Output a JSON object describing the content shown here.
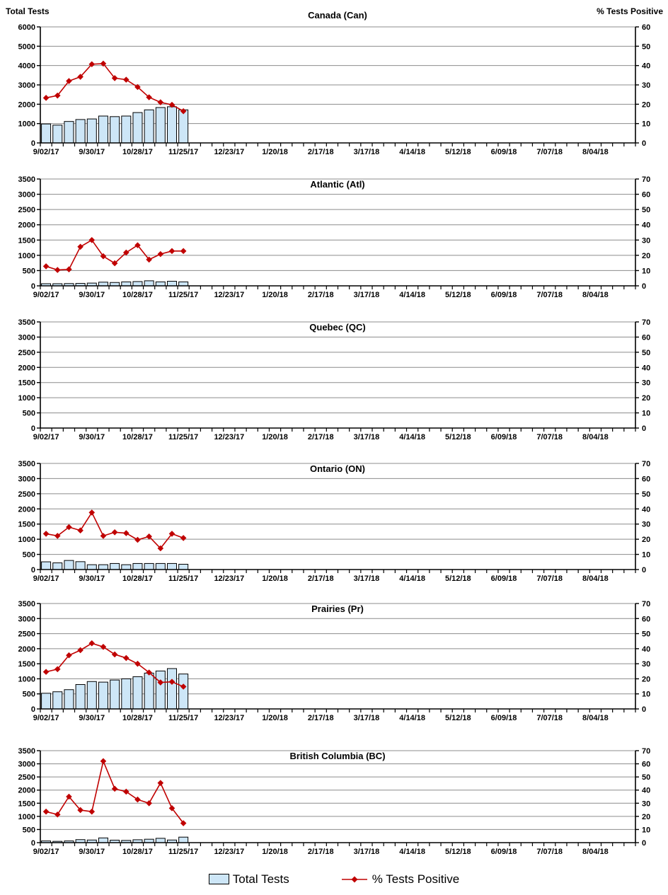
{
  "page": {
    "background": "#FFFFFF"
  },
  "colors": {
    "bar_fill": "#CDE6F7",
    "bar_border": "#000000",
    "line": "#C00000",
    "grid": "#8C8C8C",
    "axis": "#000000",
    "text": "#000000"
  },
  "legend": {
    "position": "bottom-center",
    "items": [
      {
        "label": "Total Tests",
        "type": "bar"
      },
      {
        "label": "% Tests Positive",
        "type": "line"
      }
    ]
  },
  "x_axis": {
    "weeks_total": 52,
    "label_every": 4,
    "tick_labels": [
      "9/02/17",
      "9/30/17",
      "10/28/17",
      "11/25/17",
      "12/23/17",
      "1/20/18",
      "2/17/18",
      "3/17/18",
      "4/14/18",
      "5/12/18",
      "6/09/18",
      "7/07/18",
      "8/04/18"
    ]
  },
  "chart_data": [
    {
      "id": "canada",
      "title": "Canada (Can)",
      "type": "combo",
      "grid": true,
      "corner_labels": {
        "left": "Total Tests",
        "right": "% Tests Positive"
      },
      "left_axis": {
        "min": 0,
        "max": 6000,
        "step": 1000
      },
      "right_axis": {
        "min": 0,
        "max": 60,
        "step": 10
      },
      "categories": [
        "9/02/17",
        "9/09/17",
        "9/16/17",
        "9/23/17",
        "9/30/17",
        "10/07/17",
        "10/14/17",
        "10/21/17",
        "10/28/17",
        "11/04/17",
        "11/11/17",
        "11/18/17",
        "11/25/17"
      ],
      "series": [
        {
          "name": "Total Tests",
          "type": "bar",
          "axis": "left",
          "values": [
            980,
            920,
            1110,
            1210,
            1240,
            1390,
            1360,
            1390,
            1570,
            1710,
            1830,
            1870,
            1710
          ]
        },
        {
          "name": "% Tests Positive",
          "type": "line",
          "axis": "right",
          "values": [
            23.3,
            24.5,
            32.0,
            34.2,
            40.7,
            41.0,
            33.5,
            32.7,
            28.9,
            23.6,
            21.0,
            19.7,
            16.4
          ]
        }
      ]
    },
    {
      "id": "atlantic",
      "title": "Atlantic (Atl)",
      "type": "combo",
      "grid": true,
      "left_axis": {
        "min": 0,
        "max": 3500,
        "step": 500
      },
      "right_axis": {
        "min": 0,
        "max": 70,
        "step": 10
      },
      "categories": [
        "9/02/17",
        "9/09/17",
        "9/16/17",
        "9/23/17",
        "9/30/17",
        "10/07/17",
        "10/14/17",
        "10/21/17",
        "10/28/17",
        "11/04/17",
        "11/11/17",
        "11/18/17",
        "11/25/17"
      ],
      "series": [
        {
          "name": "Total Tests",
          "type": "bar",
          "axis": "left",
          "values": [
            70,
            70,
            75,
            80,
            90,
            120,
            110,
            130,
            140,
            165,
            130,
            150,
            130
          ]
        },
        {
          "name": "% Tests Positive",
          "type": "line",
          "axis": "right",
          "values": [
            12.8,
            10.4,
            10.8,
            25.6,
            30.0,
            19.4,
            14.8,
            21.8,
            26.6,
            17.2,
            20.8,
            22.8,
            22.8
          ]
        }
      ]
    },
    {
      "id": "quebec",
      "title": "Quebec (QC)",
      "type": "combo",
      "grid": true,
      "left_axis": {
        "min": 0,
        "max": 3500,
        "step": 500
      },
      "right_axis": {
        "min": 0,
        "max": 70,
        "step": 10
      },
      "categories": [],
      "series": [
        {
          "name": "Total Tests",
          "type": "bar",
          "axis": "left",
          "values": []
        },
        {
          "name": "% Tests Positive",
          "type": "line",
          "axis": "right",
          "values": []
        }
      ]
    },
    {
      "id": "ontario",
      "title": "Ontario (ON)",
      "type": "combo",
      "grid": true,
      "left_axis": {
        "min": 0,
        "max": 3500,
        "step": 500
      },
      "right_axis": {
        "min": 0,
        "max": 70,
        "step": 10
      },
      "categories": [
        "9/02/17",
        "9/09/17",
        "9/16/17",
        "9/23/17",
        "9/30/17",
        "10/07/17",
        "10/14/17",
        "10/21/17",
        "10/28/17",
        "11/04/17",
        "11/11/17",
        "11/18/17",
        "11/25/17"
      ],
      "series": [
        {
          "name": "Total Tests",
          "type": "bar",
          "axis": "left",
          "values": [
            255,
            220,
            300,
            260,
            160,
            160,
            200,
            160,
            200,
            200,
            200,
            200,
            175
          ]
        },
        {
          "name": "% Tests Positive",
          "type": "line",
          "axis": "right",
          "values": [
            23.6,
            22.2,
            28.0,
            25.8,
            37.6,
            22.2,
            24.6,
            24.0,
            19.6,
            21.8,
            14.0,
            23.6,
            20.8
          ]
        }
      ]
    },
    {
      "id": "prairies",
      "title": "Prairies (Pr)",
      "type": "combo",
      "grid": true,
      "left_axis": {
        "min": 0,
        "max": 3500,
        "step": 500
      },
      "right_axis": {
        "min": 0,
        "max": 70,
        "step": 10
      },
      "categories": [
        "9/02/17",
        "9/09/17",
        "9/16/17",
        "9/23/17",
        "9/30/17",
        "10/07/17",
        "10/14/17",
        "10/21/17",
        "10/28/17",
        "11/04/17",
        "11/11/17",
        "11/18/17",
        "11/25/17"
      ],
      "series": [
        {
          "name": "Total Tests",
          "type": "bar",
          "axis": "left",
          "values": [
            520,
            570,
            640,
            810,
            910,
            890,
            960,
            1000,
            1070,
            1190,
            1260,
            1340,
            1160
          ]
        },
        {
          "name": "% Tests Positive",
          "type": "line",
          "axis": "right",
          "values": [
            24.6,
            26.4,
            35.6,
            39.0,
            43.6,
            41.2,
            36.2,
            33.8,
            30.0,
            24.2,
            17.6,
            18.0,
            14.8
          ]
        }
      ]
    },
    {
      "id": "british-columbia",
      "title": "British Columbia (BC)",
      "type": "combo",
      "grid": true,
      "left_axis": {
        "min": 0,
        "max": 3500,
        "step": 500
      },
      "right_axis": {
        "min": 0,
        "max": 70,
        "step": 10
      },
      "categories": [
        "9/02/17",
        "9/09/17",
        "9/16/17",
        "9/23/17",
        "9/30/17",
        "10/07/17",
        "10/14/17",
        "10/21/17",
        "10/28/17",
        "11/04/17",
        "11/11/17",
        "11/18/17",
        "11/25/17"
      ],
      "series": [
        {
          "name": "Total Tests",
          "type": "bar",
          "axis": "left",
          "values": [
            65,
            50,
            65,
            115,
            100,
            180,
            95,
            85,
            110,
            130,
            165,
            100,
            210
          ]
        },
        {
          "name": "% Tests Positive",
          "type": "line",
          "axis": "right",
          "values": [
            23.6,
            21.4,
            35.0,
            24.8,
            23.6,
            62.0,
            41.0,
            38.8,
            32.8,
            30.0,
            45.4,
            26.2,
            14.8
          ]
        }
      ]
    }
  ]
}
